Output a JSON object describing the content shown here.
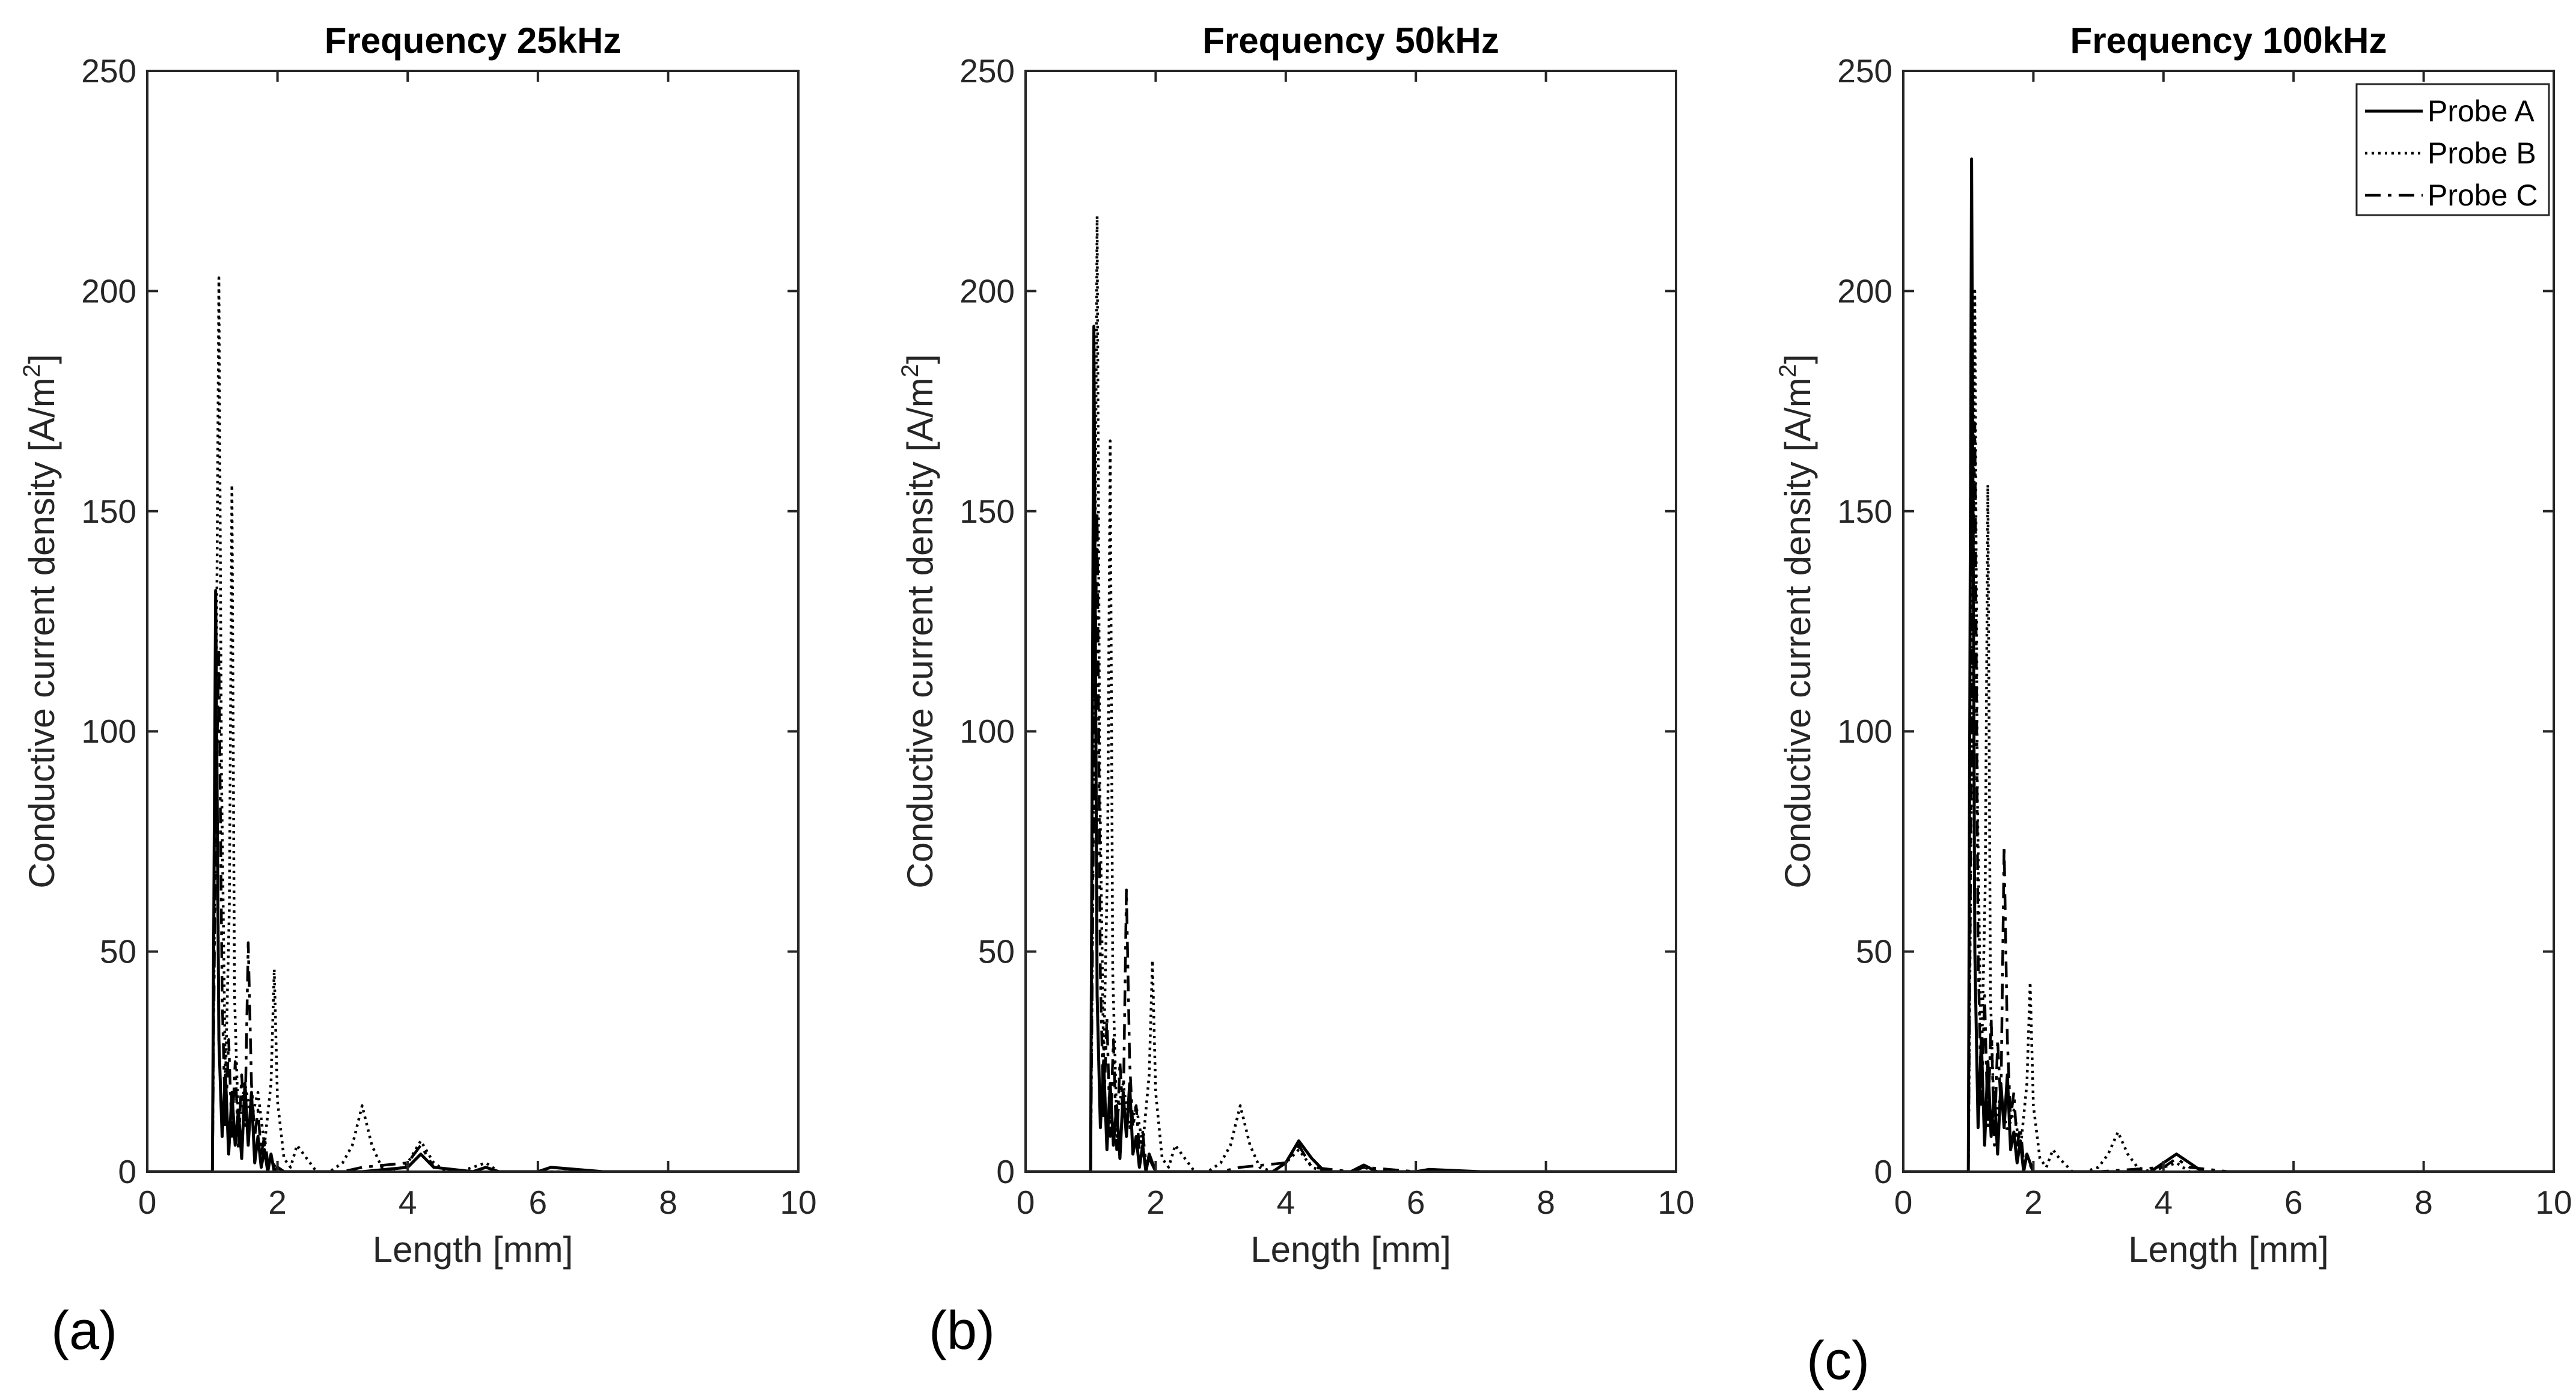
{
  "chart_data": [
    {
      "type": "line",
      "panel_label": "(a)",
      "title": "Frequency 25kHz",
      "xlabel": "Length [mm]",
      "ylabel": "Conductive current density [A/m",
      "ylabel_sup": "2",
      "ylabel_end": "]",
      "xlim": [
        0,
        10
      ],
      "ylim": [
        0,
        250
      ],
      "xticks": [
        "0",
        "2",
        "4",
        "6",
        "8",
        "10"
      ],
      "yticks": [
        "0",
        "50",
        "100",
        "150",
        "200",
        "250"
      ],
      "grid": false,
      "legend": null,
      "series": [
        {
          "style": "solid",
          "x": [
            0,
            1.0,
            1.05,
            1.1,
            1.15,
            1.2,
            1.25,
            1.3,
            1.35,
            1.4,
            1.45,
            1.5,
            1.55,
            1.6,
            1.65,
            1.7,
            1.75,
            1.8,
            1.85,
            1.9,
            1.95,
            2.0,
            2.1,
            2.2,
            2.4,
            3.3,
            4.0,
            4.2,
            4.4,
            5.0,
            5.2,
            5.4,
            6.0,
            6.2,
            7.0,
            10
          ],
          "y": [
            0,
            0,
            132,
            30,
            8,
            22,
            4,
            18,
            6,
            14,
            3,
            20,
            6,
            18,
            2,
            8,
            1,
            5,
            0,
            4,
            0,
            1,
            0,
            0,
            0,
            0,
            1,
            4,
            1,
            0,
            1,
            0,
            0,
            1,
            0,
            0
          ]
        },
        {
          "style": "dotted",
          "x": [
            0,
            1.0,
            1.06,
            1.1,
            1.14,
            1.2,
            1.26,
            1.3,
            1.34,
            1.4,
            1.5,
            1.6,
            1.7,
            1.8,
            1.9,
            1.95,
            2.0,
            2.1,
            2.2,
            2.3,
            2.4,
            2.6,
            2.8,
            3.0,
            3.15,
            3.3,
            3.45,
            3.6,
            3.8,
            4.0,
            4.2,
            4.4,
            4.6,
            4.8,
            5.0,
            5.2,
            5.4,
            5.6,
            6.0,
            7.0,
            10
          ],
          "y": [
            0,
            0,
            110,
            203,
            90,
            20,
            60,
            156,
            40,
            10,
            20,
            12,
            18,
            6,
            20,
            46,
            16,
            3,
            1,
            6,
            4,
            0,
            0,
            2,
            6,
            15,
            6,
            1,
            0,
            2,
            7,
            2,
            0,
            0,
            1,
            2,
            0,
            0,
            0,
            0,
            0
          ]
        },
        {
          "style": "dashdot",
          "x": [
            0,
            1.0,
            1.05,
            1.1,
            1.15,
            1.2,
            1.25,
            1.3,
            1.35,
            1.4,
            1.45,
            1.5,
            1.55,
            1.6,
            1.65,
            1.7,
            1.75,
            1.8,
            1.85,
            1.9,
            2.0,
            2.2,
            2.4,
            3.0,
            3.3,
            4.0,
            4.2,
            4.4,
            5.0,
            5.2,
            5.4,
            6.0,
            6.2,
            7.0,
            10
          ],
          "y": [
            0,
            0,
            80,
            118,
            40,
            10,
            30,
            8,
            25,
            5,
            22,
            10,
            52,
            20,
            8,
            14,
            4,
            8,
            2,
            3,
            0,
            0,
            0,
            0,
            1,
            2,
            6,
            1,
            0,
            1,
            0,
            0,
            1,
            0,
            0
          ]
        }
      ]
    },
    {
      "type": "line",
      "panel_label": "(b)",
      "title": "Frequency 50kHz",
      "xlabel": "Length [mm]",
      "ylabel": "Conductive current density [A/m",
      "ylabel_sup": "2",
      "ylabel_end": "]",
      "xlim": [
        0,
        10
      ],
      "ylim": [
        0,
        250
      ],
      "xticks": [
        "0",
        "2",
        "4",
        "6",
        "8",
        "10"
      ],
      "yticks": [
        "0",
        "50",
        "100",
        "150",
        "200",
        "250"
      ],
      "grid": false,
      "legend": null,
      "series": [
        {
          "style": "solid",
          "x": [
            0,
            1.0,
            1.05,
            1.1,
            1.15,
            1.2,
            1.25,
            1.3,
            1.35,
            1.4,
            1.45,
            1.5,
            1.55,
            1.6,
            1.65,
            1.7,
            1.75,
            1.8,
            1.85,
            1.9,
            2.0,
            2.2,
            3.0,
            3.3,
            3.8,
            4.0,
            4.2,
            4.4,
            4.6,
            5.0,
            5.2,
            5.4,
            6.0,
            6.2,
            7.0,
            10
          ],
          "y": [
            0,
            0,
            192,
            40,
            10,
            25,
            5,
            20,
            6,
            15,
            3,
            18,
            8,
            20,
            4,
            8,
            1,
            6,
            0,
            4,
            0,
            0,
            0,
            0,
            0,
            2,
            7,
            3,
            0,
            0,
            1.5,
            0,
            0,
            0.5,
            0,
            0
          ]
        },
        {
          "style": "dotted",
          "x": [
            0,
            1.0,
            1.06,
            1.1,
            1.14,
            1.2,
            1.26,
            1.3,
            1.34,
            1.4,
            1.5,
            1.6,
            1.7,
            1.8,
            1.9,
            1.95,
            2.0,
            2.1,
            2.2,
            2.3,
            2.4,
            2.6,
            2.8,
            3.0,
            3.15,
            3.3,
            3.45,
            3.6,
            3.8,
            4.0,
            4.2,
            4.4,
            4.6,
            5.0,
            5.2,
            5.4,
            6.0,
            7.0,
            10
          ],
          "y": [
            0,
            0,
            120,
            217,
            90,
            25,
            70,
            166,
            45,
            12,
            20,
            10,
            15,
            6,
            22,
            48,
            18,
            3,
            1,
            6,
            4,
            0,
            0,
            2,
            6,
            15,
            6,
            1,
            0,
            2,
            5,
            1,
            0,
            0,
            1,
            0,
            0,
            0,
            0
          ]
        },
        {
          "style": "dashdot",
          "x": [
            0,
            1.0,
            1.05,
            1.1,
            1.15,
            1.2,
            1.25,
            1.3,
            1.35,
            1.4,
            1.45,
            1.5,
            1.55,
            1.6,
            1.65,
            1.7,
            1.75,
            1.8,
            1.85,
            1.9,
            2.0,
            2.2,
            3.0,
            3.3,
            4.0,
            4.2,
            4.4,
            5.0,
            5.2,
            6.0,
            7.0,
            10
          ],
          "y": [
            0,
            0,
            90,
            150,
            45,
            12,
            35,
            8,
            30,
            5,
            25,
            12,
            64,
            25,
            10,
            15,
            5,
            9,
            2,
            3,
            0,
            0,
            0,
            1,
            2,
            6,
            1,
            0,
            1,
            0,
            0,
            0
          ]
        }
      ]
    },
    {
      "type": "line",
      "panel_label": "(c)",
      "title": "Frequency 100kHz",
      "xlabel": "Length [mm]",
      "ylabel": "Conductive current density [A/m",
      "ylabel_sup": "2",
      "ylabel_end": "]",
      "xlim": [
        0,
        10
      ],
      "ylim": [
        0,
        250
      ],
      "xticks": [
        "0",
        "2",
        "4",
        "6",
        "8",
        "10"
      ],
      "yticks": [
        "0",
        "50",
        "100",
        "150",
        "200",
        "250"
      ],
      "grid": false,
      "legend": {
        "location": "top-right",
        "entries": [
          "Probe A",
          "Probe B",
          "Probe C"
        ]
      },
      "series": [
        {
          "name": "Probe A",
          "style": "solid",
          "x": [
            0,
            1.0,
            1.05,
            1.1,
            1.15,
            1.2,
            1.25,
            1.3,
            1.35,
            1.4,
            1.45,
            1.5,
            1.55,
            1.6,
            1.65,
            1.7,
            1.75,
            1.8,
            1.85,
            1.9,
            2.0,
            2.2,
            3.0,
            3.3,
            3.8,
            4.0,
            4.2,
            4.4,
            4.6,
            5.0,
            6.0,
            7.0,
            10
          ],
          "y": [
            0,
            0,
            230,
            50,
            10,
            30,
            6,
            25,
            8,
            18,
            4,
            20,
            10,
            22,
            5,
            9,
            2,
            7,
            0,
            4,
            0,
            0,
            0,
            0,
            0,
            2,
            4,
            2,
            0,
            0,
            0,
            0,
            0
          ]
        },
        {
          "name": "Probe B",
          "style": "dotted",
          "x": [
            0,
            1.0,
            1.06,
            1.1,
            1.14,
            1.2,
            1.26,
            1.3,
            1.34,
            1.4,
            1.5,
            1.6,
            1.7,
            1.8,
            1.9,
            1.95,
            2.0,
            2.1,
            2.2,
            2.3,
            2.4,
            2.6,
            2.8,
            3.0,
            3.15,
            3.3,
            3.45,
            3.6,
            3.8,
            4.0,
            4.2,
            4.4,
            5.0,
            6.0,
            7.0,
            10
          ],
          "y": [
            0,
            0,
            110,
            200,
            85,
            22,
            65,
            156,
            40,
            10,
            18,
            9,
            14,
            5,
            20,
            43,
            15,
            3,
            1,
            5,
            3,
            0,
            0,
            1,
            4,
            9,
            4,
            1,
            0,
            1,
            2,
            0,
            0,
            0,
            0,
            0
          ]
        },
        {
          "name": "Probe C",
          "style": "dashdot",
          "x": [
            0,
            1.0,
            1.05,
            1.1,
            1.15,
            1.2,
            1.25,
            1.3,
            1.35,
            1.4,
            1.45,
            1.5,
            1.55,
            1.6,
            1.65,
            1.7,
            1.75,
            1.8,
            1.85,
            1.9,
            2.0,
            2.2,
            3.0,
            4.0,
            4.2,
            4.4,
            5.0,
            6.0,
            7.0,
            10
          ],
          "y": [
            0,
            0,
            100,
            170,
            50,
            15,
            40,
            10,
            35,
            6,
            30,
            15,
            74,
            30,
            12,
            18,
            6,
            10,
            2,
            3,
            0,
            0,
            0,
            1,
            3,
            1,
            0,
            0,
            0,
            0
          ]
        }
      ]
    }
  ]
}
